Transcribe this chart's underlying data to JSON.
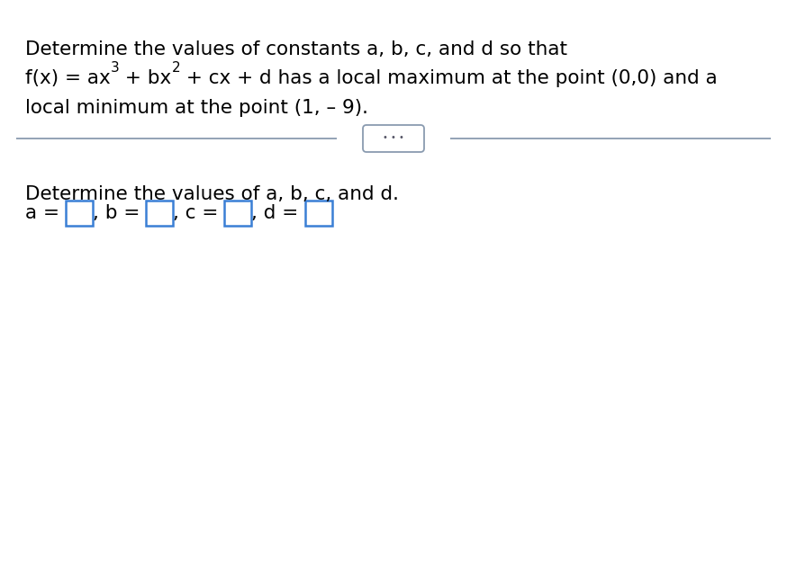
{
  "bg_color": "#ffffff",
  "line1": "Determine the values of constants a, b, c, and d so that",
  "line3": "local minimum at the point (1, – 9).",
  "divider_dots": "⋯",
  "answer_label": "Determine the values of a, b, c, and d.",
  "text_color": "#000000",
  "box_color": "#3a7fd5",
  "divider_color": "#8a9bb0",
  "dots_box_color": "#ffffff",
  "dots_box_edge": "#8a9bb0",
  "font_size_main": 15.5,
  "font_size_super": 11,
  "font_size_dots": 11
}
